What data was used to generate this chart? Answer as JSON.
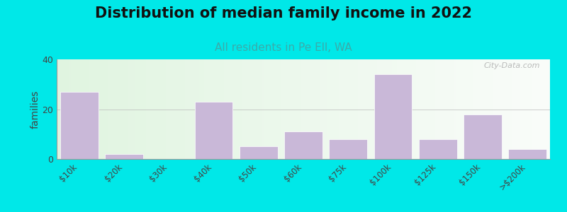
{
  "title": "Distribution of median family income in 2022",
  "subtitle": "All residents in Pe Ell, WA",
  "ylabel": "families",
  "categories": [
    "$10k",
    "$20k",
    "$30k",
    "$40k",
    "$50k",
    "$60k",
    "$75k",
    "$100k",
    "$125k",
    "$150k",
    ">$200k"
  ],
  "values": [
    27,
    2,
    0,
    23,
    5,
    11,
    8,
    34,
    8,
    18,
    4
  ],
  "bar_color": "#c9b8d8",
  "bar_edgecolor": "#c9b8d8",
  "background_outer": "#00e8e8",
  "ylim": [
    0,
    40
  ],
  "yticks": [
    0,
    20,
    40
  ],
  "title_fontsize": 15,
  "subtitle_fontsize": 11,
  "subtitle_color": "#3aabaa",
  "ylabel_fontsize": 10,
  "watermark_text": "City-Data.com"
}
